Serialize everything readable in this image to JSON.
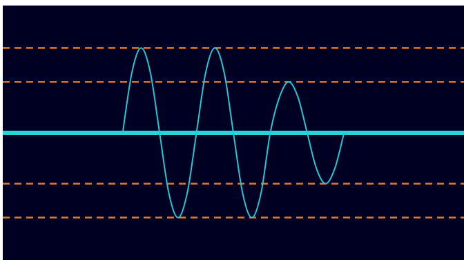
{
  "colors": {
    "background": "#000022",
    "signal": "#22c8d4",
    "baseline": "#22d6dc",
    "threshold": "#e8772a",
    "page": "#ffffff"
  },
  "chart_data": {
    "type": "line",
    "title": "",
    "xlabel": "",
    "ylabel": "",
    "grid": false,
    "legend": "none",
    "xlim": [
      0,
      100
    ],
    "ylim": [
      -1.5,
      1.5
    ],
    "baseline": 0,
    "thresholds": [
      1.0,
      0.6,
      -0.6,
      -1.0
    ],
    "series": [
      {
        "x": [
          26.0,
          28.0,
          30.0,
          32.0,
          34.0,
          36.0,
          38.0,
          40.0,
          42.0,
          44.0,
          46.0,
          48.0,
          50.0,
          52.0,
          54.0,
          56.0,
          58.0,
          60.0,
          62.0,
          64.0,
          66.0,
          68.0,
          70.0,
          72.0,
          74.0
        ],
        "y": [
          0.0,
          0.71,
          1.0,
          0.71,
          0.0,
          -0.71,
          -1.0,
          -0.71,
          0.0,
          0.71,
          1.0,
          0.71,
          0.0,
          -0.71,
          -1.0,
          -0.71,
          0.0,
          0.42,
          0.6,
          0.42,
          0.0,
          -0.42,
          -0.6,
          -0.42,
          0.0
        ]
      }
    ]
  }
}
